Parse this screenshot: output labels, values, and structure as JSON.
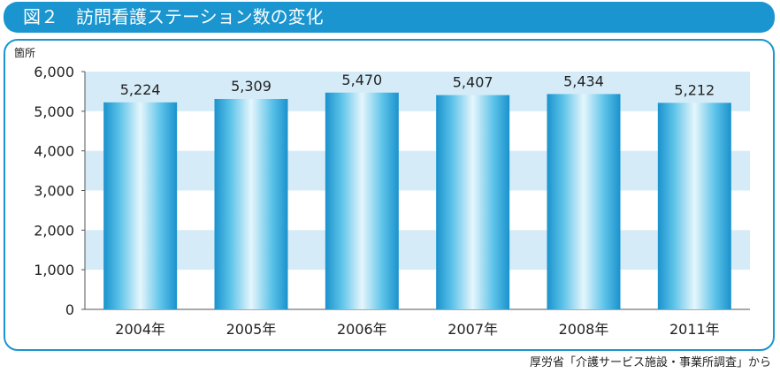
{
  "title": "図２　訪問看護ステーション数の変化",
  "source": "厚労省「介護サービス施設・事業所調査」から",
  "colors": {
    "accent": "#1a95cf",
    "band": "#d5ecf8",
    "bar_light": "#e6f6fc",
    "bar_mid": "#5dc3e9",
    "bar_dark": "#1a92cd"
  },
  "chart_data": {
    "type": "bar",
    "title": "",
    "xlabel": "",
    "ylabel": "箇所",
    "ylim": [
      0,
      6000
    ],
    "yticks": [
      "0",
      "1,000",
      "2,000",
      "3,000",
      "4,000",
      "5,000",
      "6,000"
    ],
    "categories": [
      "2004年",
      "2005年",
      "2006年",
      "2007年",
      "2008年",
      "2011年"
    ],
    "values": [
      5224,
      5309,
      5470,
      5407,
      5434,
      5212
    ],
    "value_labels": [
      "5,224",
      "5,309",
      "5,470",
      "5,407",
      "5,434",
      "5,212"
    ],
    "grid": "alternating horizontal bands",
    "legend": "none"
  }
}
